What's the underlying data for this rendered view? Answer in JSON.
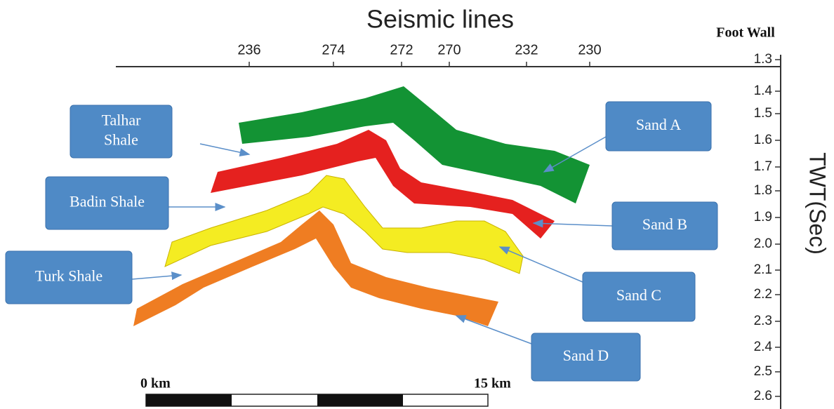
{
  "title": "Seismic lines",
  "seismic_lines": [
    "236",
    "274",
    "272",
    "270",
    "232",
    "230"
  ],
  "foot_wall": "Foot Wall",
  "twt_axis": {
    "label": "TWT(Sec)",
    "ticks": [
      "1.3",
      "1.4",
      "1.5",
      "1.6",
      "1.7",
      "1.8",
      "1.9",
      "2.0",
      "2.1",
      "2.2",
      "2.3",
      "2.4",
      "2.5",
      "2.6"
    ]
  },
  "labels": [
    "Talhar Shale",
    "Badin Shale",
    "Turk Shale",
    "Sand A",
    "Sand B",
    "Sand C",
    "Sand D"
  ],
  "scale_bar": {
    "start": "0 km",
    "end": "15 km"
  }
}
